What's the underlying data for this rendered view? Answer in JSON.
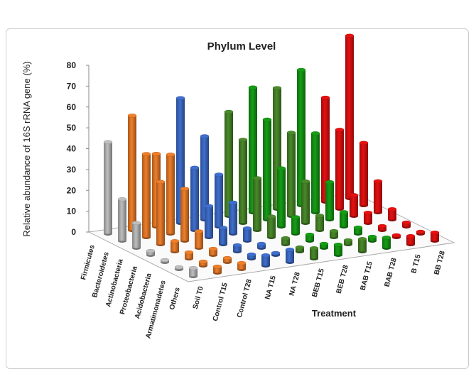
{
  "chart_data": {
    "type": "bar3d",
    "title": "Phylum Level",
    "y_label": "Relative abundance of 16S rRNA gene (%)",
    "x_label": "Treatment",
    "categories": [
      "Firmicutes",
      "Bacteroidetes",
      "Actinobacteria",
      "Proteobacteria",
      "Acidobacteria",
      "Armatimonadetes",
      "Others"
    ],
    "ylim": [
      0,
      80
    ],
    "yticks": [
      0,
      10,
      20,
      30,
      40,
      50,
      60,
      70,
      80
    ],
    "series": [
      {
        "name": "Soil T0",
        "color": "#bfbfbf",
        "values": [
          44,
          20,
          12,
          2,
          1,
          1,
          4
        ]
      },
      {
        "name": "Control T15",
        "color": "#f07f2a",
        "values": [
          55,
          40,
          30,
          5,
          3,
          2,
          3
        ]
      },
      {
        "name": "Control T28",
        "color": "#f07f2a",
        "values": [
          35,
          38,
          25,
          8,
          3,
          2,
          3
        ]
      },
      {
        "name": "NA T15",
        "color": "#3f6fcf",
        "values": [
          60,
          30,
          15,
          8,
          3,
          2,
          5
        ]
      },
      {
        "name": "NA T28",
        "color": "#3f6fcf",
        "values": [
          40,
          25,
          15,
          6,
          2,
          1,
          6
        ]
      },
      {
        "name": "BEB T15",
        "color": "#4a8a2a",
        "values": [
          50,
          40,
          25,
          10,
          3,
          2,
          5
        ]
      },
      {
        "name": "BEB T28",
        "color": "#159e15",
        "values": [
          60,
          48,
          28,
          8,
          3,
          2,
          5
        ]
      },
      {
        "name": "BAB T15",
        "color": "#4a8a2a",
        "values": [
          58,
          40,
          20,
          7,
          3,
          2,
          6
        ]
      },
      {
        "name": "BAB T28",
        "color": "#159e15",
        "values": [
          65,
          38,
          18,
          7,
          3,
          2,
          5
        ]
      },
      {
        "name": "B T15",
        "color": "#e81010",
        "values": [
          50,
          38,
          10,
          5,
          2,
          1,
          4
        ]
      },
      {
        "name": "BB T28",
        "color": "#e81010",
        "values": [
          78,
          30,
          15,
          5,
          2,
          1,
          4
        ]
      }
    ]
  }
}
